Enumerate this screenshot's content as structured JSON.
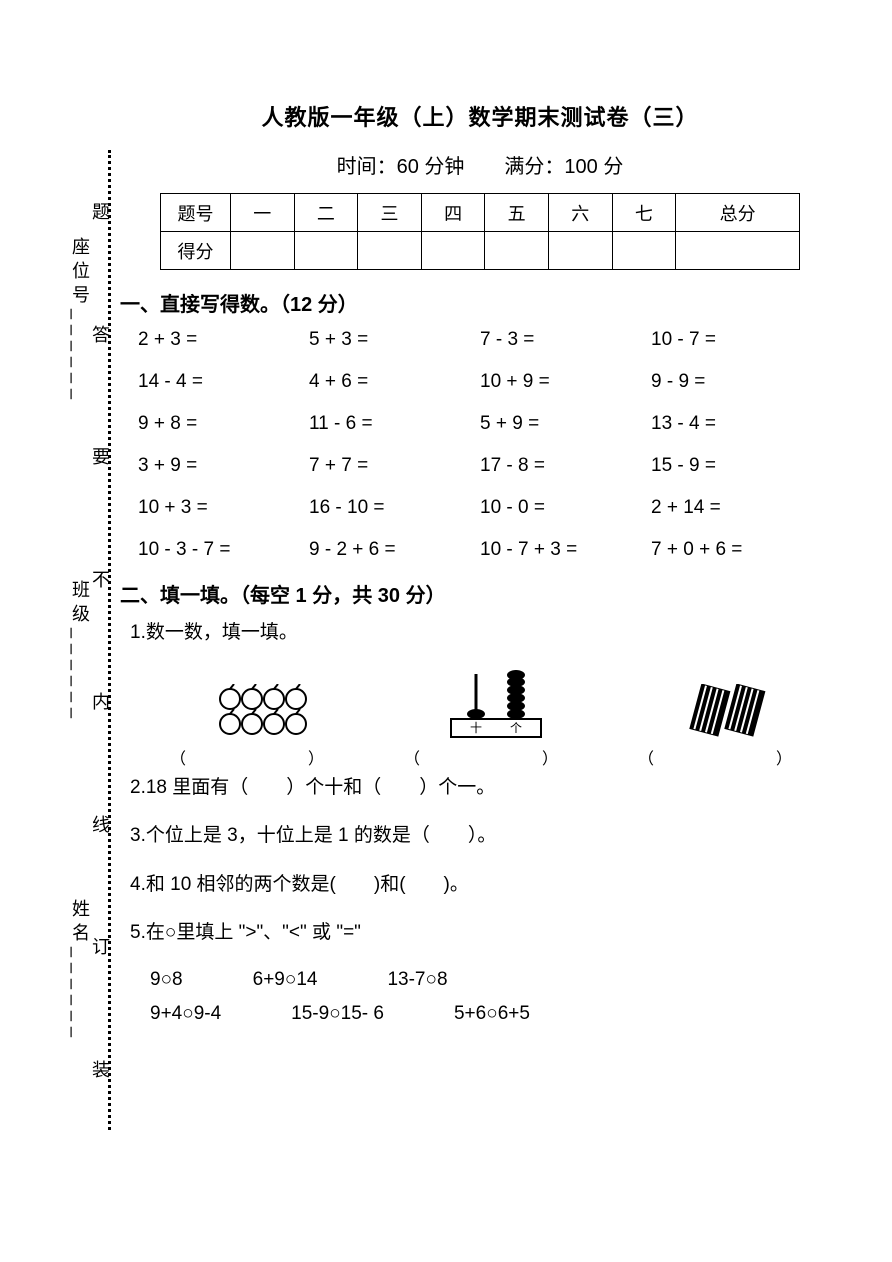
{
  "title": "人教版一年级（上）数学期末测试卷（三）",
  "subtitle": "时间：60 分钟　　满分：100 分",
  "score_table": {
    "header_cells": [
      "题号",
      "一",
      "二",
      "三",
      "四",
      "五",
      "六",
      "七",
      "总分"
    ],
    "row2_label": "得分"
  },
  "binding": {
    "outer": [
      "姓名______",
      "班级______",
      "座位号______"
    ],
    "inner": [
      "装",
      "订",
      "线",
      "内",
      "不",
      "要",
      "答",
      "题"
    ]
  },
  "section1": {
    "heading": "一、直接写得数。（12 分）",
    "rows": [
      [
        "2 + 3 =",
        "5 + 3 =",
        "7 - 3 =",
        "10 - 7 ="
      ],
      [
        "14 - 4 =",
        "4 + 6 =",
        "10 + 9 =",
        "9 - 9 ="
      ],
      [
        "9 + 8 =",
        "11 - 6 =",
        "5 + 9 =",
        "13 - 4 ="
      ],
      [
        "3 + 9 =",
        "7 + 7 =",
        "17 - 8 =",
        "15 - 9 ="
      ],
      [
        "10 + 3 =",
        "16 - 10 =",
        "10 - 0 =",
        "2 + 14 ="
      ],
      [
        "10 - 3 - 7 =",
        "9 - 2 + 6 =",
        "10 - 7 + 3 =",
        "7 + 0 + 6 ="
      ]
    ]
  },
  "section2": {
    "heading": "二、填一填。（每空 1 分，共 30 分）",
    "q1": "1.数一数，填一填。",
    "img_paren": "（　　）",
    "q2": "2.18 里面有（　　）个十和（　　）个一。",
    "q3": "3.个位上是 3，十位上是 1 的数是（　　）。",
    "q4": "4.和 10 相邻的两个数是(　　)和(　　)。",
    "q5": "5.在○里填上 \">\"、\"<\" 或 \"=\"",
    "compare_rows": [
      [
        "9○8",
        "6+9○14",
        "13-7○8"
      ],
      [
        "9+4○9-4",
        "15-9○15- 6",
        "5+6○6+5"
      ]
    ],
    "abacus_labels": {
      "tens": "十",
      "ones": "个"
    }
  },
  "colors": {
    "text": "#000000",
    "bg": "#ffffff"
  }
}
